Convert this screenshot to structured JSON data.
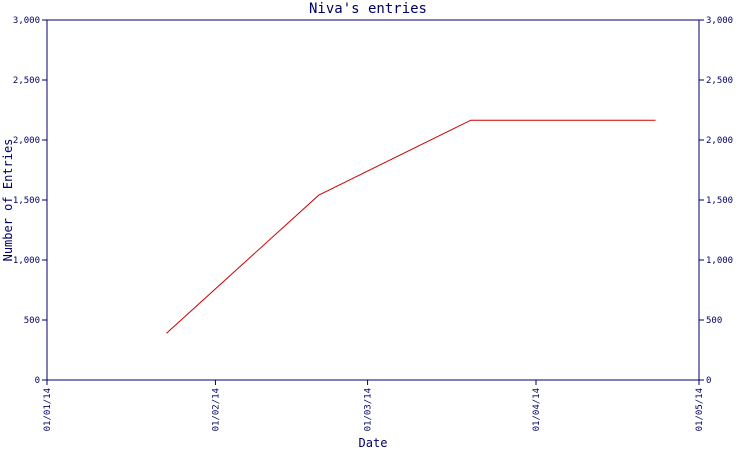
{
  "chart_data": {
    "type": "line",
    "title": "Niva's entries",
    "xlabel": "Date",
    "ylabel": "Number of Entries",
    "x_tick_labels": [
      "01/01/14",
      "01/02/14",
      "01/03/14",
      "01/04/14",
      "01/05/14"
    ],
    "x_ticks": [
      "2014-01-01",
      "2014-02-01",
      "2014-03-01",
      "2014-04-01",
      "2014-05-01"
    ],
    "xlim": [
      "2014-01-01",
      "2014-05-01"
    ],
    "ylim": [
      0,
      3000
    ],
    "y_ticks": [
      0,
      500,
      1000,
      1500,
      2000,
      2500,
      3000
    ],
    "y_tick_labels": [
      "0",
      "500",
      "1,000",
      "1,500",
      "2,000",
      "2,500",
      "3,000"
    ],
    "y_axis_right": true,
    "grid": false,
    "series": [
      {
        "color": "#cc0000",
        "x": [
          "2014-01-23",
          "2014-02-20",
          "2014-03-20",
          "2014-04-23"
        ],
        "values": [
          390,
          1540,
          2165,
          2165
        ]
      }
    ]
  },
  "colors": {
    "axis": "#000066",
    "text": "#000066",
    "line": "#cc0000",
    "background": "#ffffff"
  }
}
